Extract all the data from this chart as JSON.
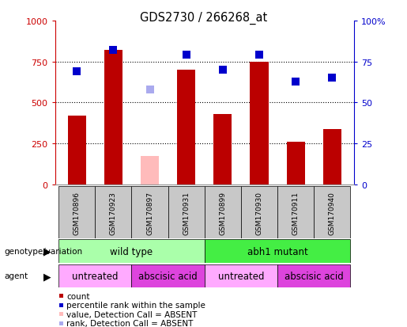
{
  "title": "GDS2730 / 266268_at",
  "samples": [
    "GSM170896",
    "GSM170923",
    "GSM170897",
    "GSM170931",
    "GSM170899",
    "GSM170930",
    "GSM170911",
    "GSM170940"
  ],
  "count_values": [
    420,
    820,
    null,
    700,
    430,
    750,
    260,
    340
  ],
  "count_absent_values": [
    null,
    null,
    175,
    null,
    null,
    null,
    null,
    null
  ],
  "rank_values": [
    69,
    82,
    null,
    79,
    70,
    79,
    63,
    65
  ],
  "rank_absent_values": [
    null,
    null,
    58,
    null,
    null,
    null,
    null,
    null
  ],
  "ylim_left": [
    0,
    1000
  ],
  "ylim_right": [
    0,
    100
  ],
  "yticks_left": [
    0,
    250,
    500,
    750,
    1000
  ],
  "yticks_right": [
    0,
    25,
    50,
    75,
    100
  ],
  "ytick_labels_left": [
    "0",
    "250",
    "500",
    "750",
    "1000"
  ],
  "ytick_labels_right": [
    "0",
    "25",
    "50",
    "75",
    "100%"
  ],
  "bar_color_present": "#bb0000",
  "bar_color_absent": "#ffbbbb",
  "rank_color_present": "#0000cc",
  "rank_color_absent": "#aaaaee",
  "genotype_groups": [
    {
      "label": "wild type",
      "start": 0,
      "end": 4,
      "color": "#aaffaa"
    },
    {
      "label": "abh1 mutant",
      "start": 4,
      "end": 8,
      "color": "#44ee44"
    }
  ],
  "agent_groups": [
    {
      "label": "untreated",
      "start": 0,
      "end": 2,
      "color": "#ffaaff"
    },
    {
      "label": "abscisic acid",
      "start": 2,
      "end": 4,
      "color": "#dd44dd"
    },
    {
      "label": "untreated",
      "start": 4,
      "end": 6,
      "color": "#ffaaff"
    },
    {
      "label": "abscisic acid",
      "start": 6,
      "end": 8,
      "color": "#dd44dd"
    }
  ],
  "legend_items": [
    {
      "label": "count",
      "color": "#bb0000"
    },
    {
      "label": "percentile rank within the sample",
      "color": "#0000cc"
    },
    {
      "label": "value, Detection Call = ABSENT",
      "color": "#ffbbbb"
    },
    {
      "label": "rank, Detection Call = ABSENT",
      "color": "#aaaaee"
    }
  ],
  "left_axis_color": "#cc0000",
  "right_axis_color": "#0000cc",
  "bar_width": 0.5,
  "rank_marker_size": 7,
  "background_color": "#ffffff",
  "sample_box_color": "#c8c8c8",
  "grid_yticks": [
    250,
    500,
    750
  ]
}
